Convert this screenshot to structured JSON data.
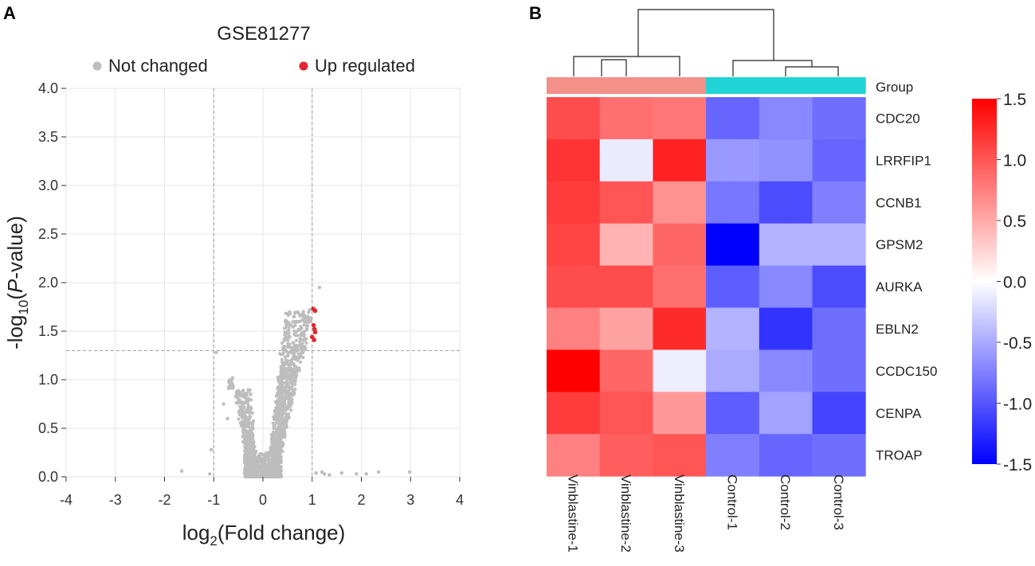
{
  "panel_a": {
    "label": "A"
  },
  "panel_b": {
    "label": "B"
  },
  "colors": {
    "not_changed": "#bdbdbd",
    "up_regulated": "#e0262e",
    "vinblastine_group": "#f4908a",
    "control_group": "#1fd3d6",
    "high": "#ff0000",
    "mid": "#ffffff",
    "low": "#0000ff"
  },
  "chart_data": [
    {
      "type": "scatter",
      "title": "GSE81277",
      "xlabel_base": "log",
      "xlabel_sub": "2",
      "xlabel_rest": "(Fold change)",
      "ylabel_pre": "-log",
      "ylabel_sub": "10",
      "ylabel_open": "(",
      "ylabel_italic": "P",
      "ylabel_rest": "-value)",
      "xlim": [
        -4,
        4
      ],
      "ylim": [
        0,
        4
      ],
      "xticks": [
        -4,
        -3,
        -2,
        -1,
        0,
        1,
        2,
        3,
        4
      ],
      "yticks": [
        0.0,
        0.5,
        1.0,
        1.5,
        2.0,
        2.5,
        3.0,
        3.5,
        4.0
      ],
      "ytick_labels": [
        "0.0",
        "0.5",
        "1.0",
        "1.5",
        "2.0",
        "2.5",
        "3.0",
        "3.5",
        "4.0"
      ],
      "grid": true,
      "thresholds": {
        "fold_change": [
          -1,
          1
        ],
        "p_value_line": 1.3
      },
      "legend": [
        {
          "name": "Not changed",
          "color": "#bdbdbd"
        },
        {
          "name": "Up regulated",
          "color": "#e0262e"
        }
      ],
      "series": [
        {
          "name": "Up regulated",
          "points": [
            [
              1.02,
              1.73
            ],
            [
              1.06,
              1.71
            ],
            [
              1.03,
              1.56
            ],
            [
              1.05,
              1.52
            ],
            [
              1.0,
              1.44
            ],
            [
              1.04,
              1.41
            ],
            [
              1.06,
              1.49
            ]
          ]
        },
        {
          "name": "Not changed",
          "points": [
            [
              -1.65,
              0.06
            ],
            [
              -1.08,
              0.03
            ],
            [
              -1.05,
              0.28
            ],
            [
              -0.62,
              1.02
            ],
            [
              1.08,
              0.04
            ],
            [
              1.2,
              0.05
            ],
            [
              1.25,
              0.03
            ],
            [
              1.35,
              0.02
            ],
            [
              1.6,
              0.04
            ],
            [
              1.9,
              0.03
            ],
            [
              2.1,
              0.03
            ],
            [
              2.35,
              0.05
            ],
            [
              2.98,
              0.05
            ],
            [
              1.15,
              1.95
            ],
            [
              -0.95,
              1.28
            ],
            [
              -0.8,
              0.75
            ],
            [
              -0.72,
              0.6
            ],
            [
              0.95,
              1.72
            ],
            [
              0.82,
              1.7
            ],
            [
              0.9,
              1.6
            ]
          ]
        }
      ]
    },
    {
      "type": "heatmap",
      "rows": [
        "Group",
        "CDC20",
        "LRRFIP1",
        "CCNB1",
        "GPSM2",
        "AURKA",
        "EBLN2",
        "CCDC150",
        "CENPA",
        "TROAP"
      ],
      "gene_rows": [
        "CDC20",
        "LRRFIP1",
        "CCNB1",
        "GPSM2",
        "AURKA",
        "EBLN2",
        "CCDC150",
        "CENPA",
        "TROAP"
      ],
      "columns": [
        "Vinblastine-1",
        "Vinblastine-2",
        "Vinblastine-3",
        "Control-1",
        "Control-2",
        "Control-3"
      ],
      "groups": [
        "Vinblastine",
        "Vinblastine",
        "Vinblastine",
        "Control",
        "Control",
        "Control"
      ],
      "values": [
        [
          1.05,
          0.85,
          0.8,
          -0.9,
          -0.7,
          -0.85
        ],
        [
          1.2,
          -0.12,
          1.3,
          -0.6,
          -0.65,
          -0.9
        ],
        [
          1.15,
          1.0,
          0.65,
          -0.8,
          -1.05,
          -0.75
        ],
        [
          1.1,
          0.45,
          0.9,
          -1.5,
          -0.45,
          -0.45
        ],
        [
          1.05,
          1.05,
          0.85,
          -0.95,
          -0.7,
          -1.05
        ],
        [
          0.75,
          0.55,
          1.25,
          -0.45,
          -1.2,
          -0.85
        ],
        [
          1.5,
          0.9,
          -0.1,
          -0.5,
          -0.7,
          -0.85
        ],
        [
          1.15,
          1.0,
          0.6,
          -0.95,
          -0.55,
          -1.1
        ],
        [
          0.75,
          0.95,
          1.0,
          -0.75,
          -0.9,
          -0.85
        ]
      ],
      "colorbar": {
        "min": -1.5,
        "max": 1.5,
        "ticks": [
          "1.5",
          "1.0",
          "0.5",
          "0.0",
          "-0.5",
          "-1.0",
          "-1.5"
        ]
      }
    }
  ]
}
